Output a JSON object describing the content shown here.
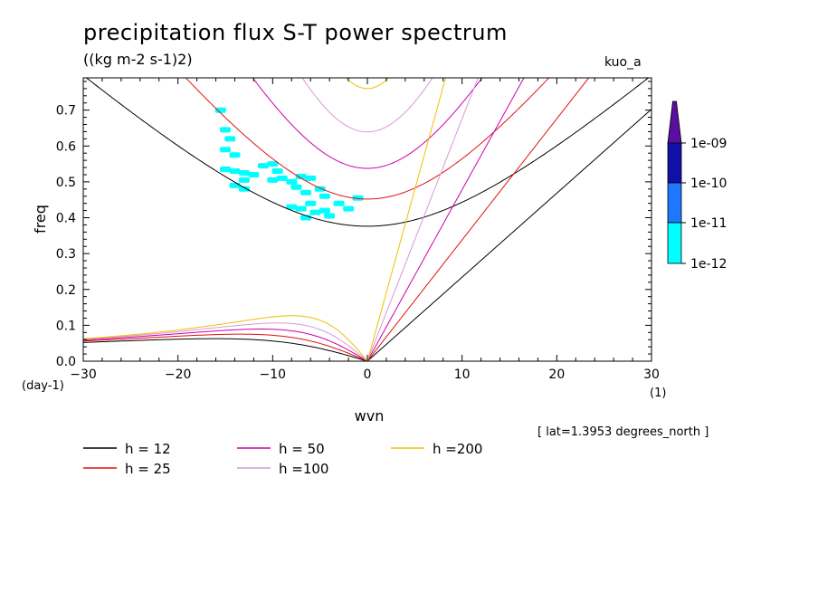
{
  "header": {
    "title": "precipitation flux S-T power spectrum",
    "units": "((kg m-2 s-1)2)",
    "dataset": "kuo_a",
    "lat_info": "[ lat=1.3953 degrees_north ]"
  },
  "chart_data": {
    "type": "line",
    "xlabel": "wvn",
    "ylabel": "freq",
    "x_units": "(1)",
    "y_units": "(day-1)",
    "xlim": [
      -30,
      30
    ],
    "ylim": [
      0,
      0.79
    ],
    "x_ticks": [
      -30,
      -20,
      -10,
      0,
      10,
      20,
      30
    ],
    "y_ticks": [
      0.0,
      0.1,
      0.2,
      0.3,
      0.4,
      0.5,
      0.6,
      0.7
    ],
    "grid": false,
    "legend_position": "bottom",
    "series": [
      {
        "name": "h = 12",
        "equivalent_depth": 12,
        "color": "#000000"
      },
      {
        "name": "h = 25",
        "equivalent_depth": 25,
        "color": "#e01010"
      },
      {
        "name": "h = 50",
        "equivalent_depth": 50,
        "color": "#cc00aa"
      },
      {
        "name": "h =100",
        "equivalent_depth": 100,
        "color": "#d899d8"
      },
      {
        "name": "h =200",
        "equivalent_depth": 200,
        "color": "#f0c000"
      }
    ],
    "colorbar": {
      "labels": [
        "1e-09",
        "1e-10",
        "1e-11",
        "1e-12"
      ],
      "colors": [
        "#5a0fa0",
        "#1010a8",
        "#1e78ff",
        "#00ffff"
      ]
    },
    "contour_patches": {
      "color": "#00ffff",
      "points": [
        [
          -15.5,
          0.7
        ],
        [
          -15,
          0.645
        ],
        [
          -14.5,
          0.62
        ],
        [
          -15,
          0.59
        ],
        [
          -14,
          0.575
        ],
        [
          -15,
          0.535
        ],
        [
          -14,
          0.53
        ],
        [
          -13,
          0.525
        ],
        [
          -12,
          0.52
        ],
        [
          -13,
          0.505
        ],
        [
          -14,
          0.49
        ],
        [
          -13,
          0.48
        ],
        [
          -11,
          0.545
        ],
        [
          -10,
          0.55
        ],
        [
          -9.5,
          0.53
        ],
        [
          -10,
          0.505
        ],
        [
          -9,
          0.51
        ],
        [
          -8,
          0.5
        ],
        [
          -7,
          0.515
        ],
        [
          -6,
          0.51
        ],
        [
          -7.5,
          0.485
        ],
        [
          -6.5,
          0.47
        ],
        [
          -5,
          0.48
        ],
        [
          -4.5,
          0.46
        ],
        [
          -8,
          0.43
        ],
        [
          -7,
          0.425
        ],
        [
          -6,
          0.44
        ],
        [
          -5.5,
          0.415
        ],
        [
          -4.5,
          0.42
        ],
        [
          -3,
          0.44
        ],
        [
          -2,
          0.425
        ],
        [
          -4,
          0.405
        ],
        [
          -6.5,
          0.4
        ],
        [
          -1,
          0.455
        ]
      ]
    }
  }
}
